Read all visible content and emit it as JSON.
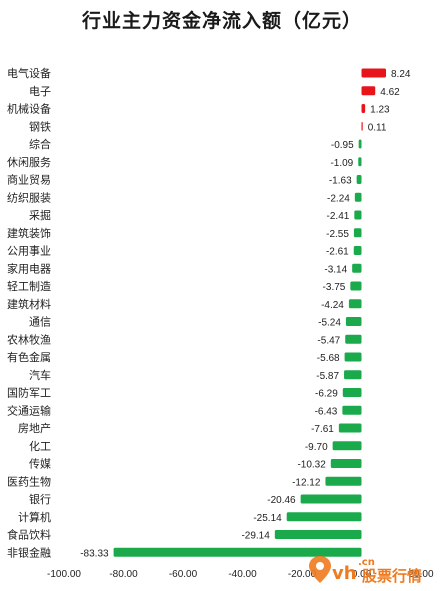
{
  "chart_data": {
    "type": "bar",
    "orientation": "horizontal",
    "title": "行业主力资金净流入额（亿元）",
    "categories": [
      "电气设备",
      "电子",
      "机械设备",
      "钢铁",
      "综合",
      "休闲服务",
      "商业贸易",
      "纺织服装",
      "采掘",
      "建筑装饰",
      "公用事业",
      "家用电器",
      "轻工制造",
      "建筑材料",
      "通信",
      "农林牧渔",
      "有色金属",
      "汽车",
      "国防军工",
      "交通运输",
      "房地产",
      "化工",
      "传媒",
      "医药生物",
      "银行",
      "计算机",
      "食品饮料",
      "非银金融"
    ],
    "values": [
      8.24,
      4.62,
      1.23,
      0.11,
      -0.95,
      -1.09,
      -1.63,
      -2.24,
      -2.41,
      -2.55,
      -2.61,
      -3.14,
      -3.75,
      -4.24,
      -5.24,
      -5.47,
      -5.68,
      -5.87,
      -6.29,
      -6.43,
      -7.61,
      -9.7,
      -10.32,
      -12.12,
      -20.46,
      -25.14,
      -29.14,
      -83.33
    ],
    "value_labels": [
      "8.24",
      "4.62",
      "1.23",
      "0.11",
      "-0.95",
      "-1.09",
      "-1.63",
      "-2.24",
      "-2.41",
      "-2.55",
      "-2.61",
      "-3.14",
      "-3.75",
      "-4.24",
      "-5.24",
      "-5.47",
      "-5.68",
      "-5.87",
      "-6.29",
      "-6.43",
      "-7.61",
      "-9.70",
      "-10.32",
      "-12.12",
      "-20.46",
      "-25.14",
      "-29.14",
      "-83.33"
    ],
    "x_ticks": [
      -100,
      -80,
      -60,
      -40,
      -20,
      0,
      20
    ],
    "x_tick_labels": [
      "-100.00",
      "-80.00",
      "-60.00",
      "-40.00",
      "-20.00",
      "0.00",
      "20.00"
    ],
    "xlim": [
      -100,
      20
    ],
    "colors": {
      "positive": "#e8141c",
      "negative": "#1aaa4b"
    },
    "grid": false
  },
  "watermark": {
    "brand": "vh",
    "domain": ".cn",
    "name": "股票行情"
  }
}
